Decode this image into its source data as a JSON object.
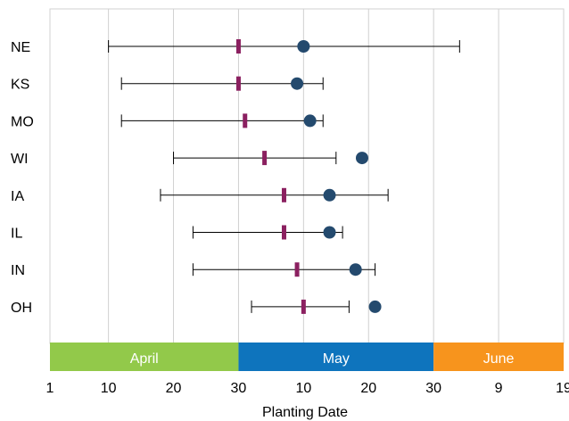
{
  "chart_data": {
    "type": "scatter",
    "xlabel": "Planting Date",
    "grid": true,
    "x_ticks": [
      {
        "label": "1",
        "date": "Apr 1"
      },
      {
        "label": "10",
        "date": "Apr 10"
      },
      {
        "label": "20",
        "date": "Apr 20"
      },
      {
        "label": "30",
        "date": "Apr 30"
      },
      {
        "label": "10",
        "date": "May 10"
      },
      {
        "label": "20",
        "date": "May 20"
      },
      {
        "label": "30",
        "date": "May 30"
      },
      {
        "label": "9",
        "date": "Jun 9"
      },
      {
        "label": "19",
        "date": "Jun 19"
      }
    ],
    "months": [
      {
        "name": "April",
        "start": "Apr 1",
        "end": "Apr 30",
        "color": "#92c94a"
      },
      {
        "name": "May",
        "start": "Apr 30",
        "end": "May 30",
        "color": "#0e74bd"
      },
      {
        "name": "June",
        "start": "May 30",
        "end": "Jun 19",
        "color": "#f7941d"
      }
    ],
    "series_colors": {
      "dot": "#244a6e",
      "bar_marker": "#8b2060",
      "whisker": "#000000"
    },
    "categories": [
      "NE",
      "KS",
      "MO",
      "WI",
      "IA",
      "IL",
      "IN",
      "OH"
    ],
    "rows": [
      {
        "state": "NE",
        "range": [
          "Apr 10",
          "Jun 3"
        ],
        "marker": "Apr 30",
        "dot": "May 10"
      },
      {
        "state": "KS",
        "range": [
          "Apr 12",
          "May 13"
        ],
        "marker": "Apr 30",
        "dot": "May 9"
      },
      {
        "state": "MO",
        "range": [
          "Apr 12",
          "May 13"
        ],
        "marker": "May 1",
        "dot": "May 11"
      },
      {
        "state": "WI",
        "range": [
          "Apr 20",
          "May 15"
        ],
        "marker": "May 4",
        "dot": "May 19"
      },
      {
        "state": "IA",
        "range": [
          "Apr 18",
          "May 23"
        ],
        "marker": "May 7",
        "dot": "May 14"
      },
      {
        "state": "IL",
        "range": [
          "Apr 23",
          "May 16"
        ],
        "marker": "May 7",
        "dot": "May 14"
      },
      {
        "state": "IN",
        "range": [
          "Apr 23",
          "May 21"
        ],
        "marker": "May 9",
        "dot": "May 18"
      },
      {
        "state": "OH",
        "range": [
          "May 2",
          "May 17"
        ],
        "marker": "May 10",
        "dot": "May 21"
      }
    ]
  }
}
